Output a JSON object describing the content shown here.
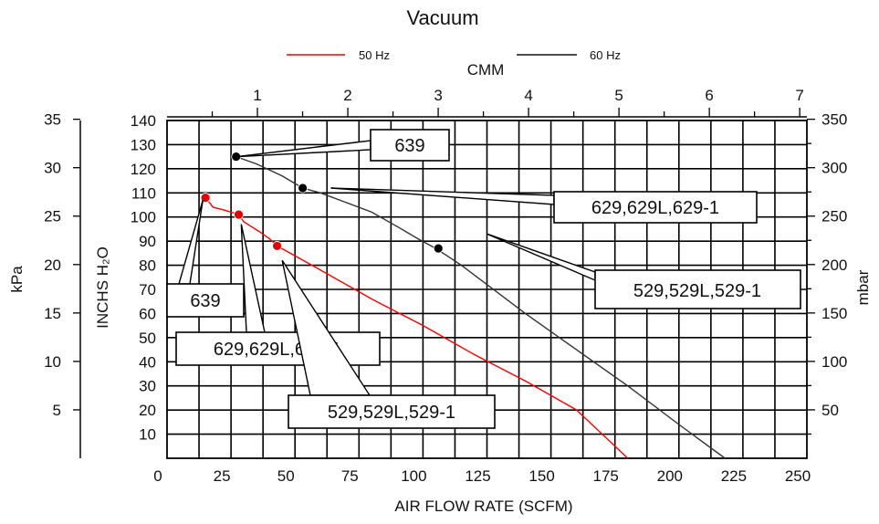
{
  "chart_data": {
    "type": "line",
    "title": "Vacuum",
    "top_axis_label": "CMM",
    "xlabel": "AIR FLOW RATE (SCFM)",
    "ylabel": "INCHS H₂O",
    "left_outer_label": "kPa",
    "right_label": "mbar",
    "xlim": [
      0,
      250
    ],
    "ylim": [
      0,
      140
    ],
    "grid": true,
    "legend_position": "top-center",
    "x_ticks": [
      "0",
      "25",
      "50",
      "75",
      "100",
      "125",
      "150",
      "175",
      "200",
      "225",
      "250"
    ],
    "y_ticks": [
      "10",
      "20",
      "30",
      "40",
      "50",
      "60",
      "70",
      "80",
      "90",
      "100",
      "110",
      "120",
      "130",
      "140"
    ],
    "cmm_ticks": [
      "1",
      "2",
      "3",
      "4",
      "5",
      "6",
      "7"
    ],
    "kpa_ticks": [
      "5",
      "10",
      "15",
      "20",
      "25",
      "30",
      "35"
    ],
    "mbar_ticks": [
      "50",
      "100",
      "150",
      "200",
      "250",
      "300",
      "350"
    ],
    "series": [
      {
        "name": "50 Hz",
        "color": "#ff0000",
        "points": [
          [
            15,
            108
          ],
          [
            18,
            104
          ],
          [
            22,
            103
          ],
          [
            28,
            101
          ],
          [
            30,
            98
          ],
          [
            33,
            96
          ],
          [
            36,
            94
          ],
          [
            40,
            91
          ],
          [
            43,
            88
          ],
          [
            60,
            78
          ],
          [
            80,
            66
          ],
          [
            100,
            55
          ],
          [
            120,
            43
          ],
          [
            140,
            32
          ],
          [
            160,
            20
          ],
          [
            180,
            0
          ]
        ],
        "markers": [
          [
            15,
            108
          ],
          [
            28,
            101
          ],
          [
            43,
            88
          ]
        ]
      },
      {
        "name": "60 Hz",
        "color": "#333333",
        "points": [
          [
            27,
            125
          ],
          [
            35,
            122
          ],
          [
            45,
            117
          ],
          [
            53,
            112
          ],
          [
            60,
            110
          ],
          [
            70,
            106
          ],
          [
            80,
            102
          ],
          [
            90,
            96
          ],
          [
            98,
            91
          ],
          [
            105,
            87
          ],
          [
            115,
            80
          ],
          [
            125,
            72
          ],
          [
            140,
            60
          ],
          [
            160,
            45
          ],
          [
            180,
            30
          ],
          [
            200,
            14
          ],
          [
            218,
            0
          ]
        ],
        "markers": [
          [
            27,
            125
          ],
          [
            53,
            112
          ],
          [
            106,
            87
          ]
        ]
      }
    ],
    "annotations": [
      {
        "text": "639",
        "series": "60 Hz"
      },
      {
        "text": "629,629L,629-1",
        "series": "60 Hz"
      },
      {
        "text": "529,529L,529-1",
        "series": "60 Hz"
      },
      {
        "text": "639",
        "series": "50 Hz"
      },
      {
        "text": "629,629L,629-1",
        "series": "50 Hz"
      },
      {
        "text": "529,529L,529-1",
        "series": "50 Hz"
      }
    ]
  }
}
